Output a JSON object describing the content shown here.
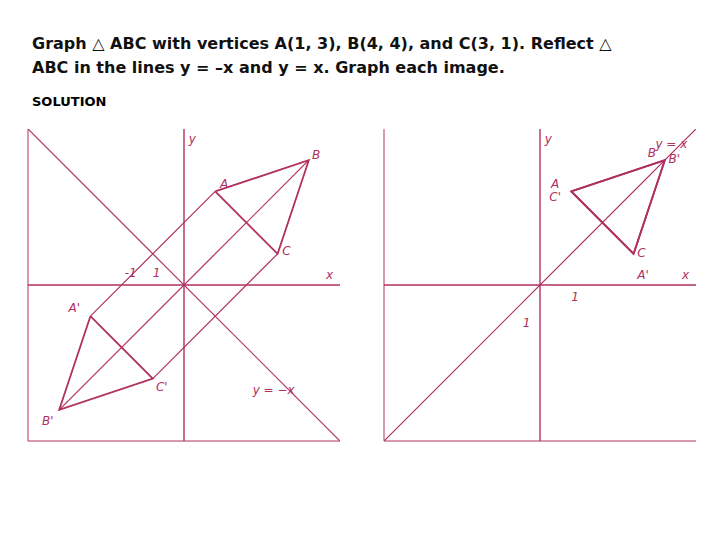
{
  "chart_data": [
    {
      "type": "line",
      "title": "Graph △ ABC with vertices A(1, 3), B(4, 4), and C(3, 1). Reflect △ ABC in the lines y = –x and y = x. Graph each image.",
      "subtitle": "SOLUTION",
      "color": "#b03060",
      "xlim": [
        -5,
        5
      ],
      "ylim": [
        -5,
        5
      ],
      "xticks": [
        -5,
        -4,
        -3,
        -2,
        -1,
        0,
        1,
        2,
        3,
        4,
        5
      ],
      "yticks": [
        -5,
        -4,
        -3,
        -2,
        -1,
        0,
        1,
        2,
        3,
        4,
        5
      ],
      "grid": true,
      "tick_labels": false,
      "series": [
        {
          "x": [
            -5,
            5
          ],
          "values": [
            5,
            -5
          ]
        },
        {
          "x": [
            1,
            4,
            3,
            1
          ],
          "values": [
            3,
            4,
            1,
            3
          ]
        },
        {
          "x": [
            -3,
            -4,
            -1,
            -3
          ],
          "values": [
            -1,
            -4,
            -3,
            -1
          ]
        },
        {
          "x": [
            1,
            -3
          ],
          "values": [
            3,
            -1
          ]
        },
        {
          "x": [
            4,
            -4
          ],
          "values": [
            4,
            -4
          ]
        },
        {
          "x": [
            3,
            -1
          ],
          "values": [
            1,
            -3
          ]
        }
      ],
      "annotations": [
        {
          "text": "x",
          "x": 4.55,
          "y": 0.2
        },
        {
          "text": "y",
          "x": 0.15,
          "y": 4.55
        },
        {
          "text": "y = −x",
          "x": 2.2,
          "y": -3.5
        },
        {
          "text": "1",
          "x": -1.0,
          "y": 0.25
        },
        {
          "text": "-1",
          "x": -1.9,
          "y": 0.25
        },
        {
          "text": "A",
          "x": 1.15,
          "y": 3.1
        },
        {
          "text": "B",
          "x": 4.1,
          "y": 4.05
        },
        {
          "text": "C",
          "x": 3.15,
          "y": 0.95
        },
        {
          "text": "A'",
          "x": -3.7,
          "y": -0.85
        },
        {
          "text": "B'",
          "x": -4.55,
          "y": -4.5
        },
        {
          "text": "C'",
          "x": -0.9,
          "y": -3.4
        }
      ]
    },
    {
      "type": "line",
      "color": "#b03060",
      "xlim": [
        -5,
        5
      ],
      "ylim": [
        -5,
        5
      ],
      "xticks": [
        -5,
        -4,
        -3,
        -2,
        -1,
        0,
        1,
        2,
        3,
        4,
        5
      ],
      "yticks": [
        -5,
        -4,
        -3,
        -2,
        -1,
        0,
        1,
        2,
        3,
        4,
        5
      ],
      "grid": true,
      "tick_labels": false,
      "series": [
        {
          "x": [
            -5,
            5
          ],
          "values": [
            -5,
            5
          ]
        },
        {
          "x": [
            1,
            4,
            3,
            1
          ],
          "values": [
            3,
            4,
            1,
            3
          ]
        },
        {
          "x": [
            3,
            4,
            1,
            3
          ],
          "values": [
            1,
            4,
            3,
            1
          ]
        },
        {
          "x": [
            1,
            3
          ],
          "values": [
            3,
            1
          ]
        },
        {
          "x": [
            4,
            4
          ],
          "values": [
            4,
            4
          ]
        },
        {
          "x": [
            3,
            1
          ],
          "values": [
            1,
            3
          ]
        }
      ],
      "annotations": [
        {
          "text": "x",
          "x": 4.55,
          "y": 0.2
        },
        {
          "text": "y",
          "x": 0.15,
          "y": 4.55
        },
        {
          "text": "y = x",
          "x": 3.7,
          "y": 4.4
        },
        {
          "text": "1",
          "x": -0.55,
          "y": -1.35
        },
        {
          "text": "1",
          "x": 1.0,
          "y": -0.5
        },
        {
          "text": "A",
          "x": 0.35,
          "y": 3.1
        },
        {
          "text": "B",
          "x": 3.45,
          "y": 4.1
        },
        {
          "text": "C",
          "x": 3.12,
          "y": 0.9
        },
        {
          "text": "C'",
          "x": 0.3,
          "y": 3.1
        },
        {
          "text": "B'",
          "x": 4.12,
          "y": 3.9
        },
        {
          "text": "A'",
          "x": 3.12,
          "y": 0.6
        }
      ]
    }
  ]
}
